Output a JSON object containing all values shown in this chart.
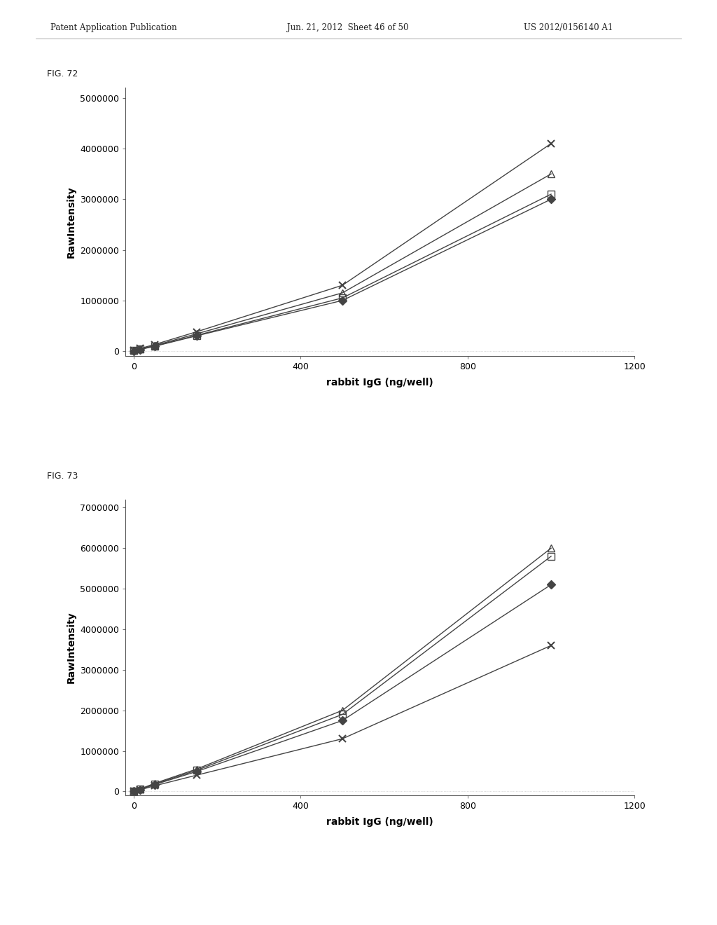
{
  "header_left": "Patent Application Publication",
  "header_mid": "Jun. 21, 2012  Sheet 46 of 50",
  "header_right": "US 2012/0156140 A1",
  "fig72": {
    "label": "FIG. 72",
    "xlabel": "rabbit IgG (ng/well)",
    "ylabel": "RawIntensity",
    "xlim": [
      -20,
      1200
    ],
    "ylim": [
      -100000,
      5200000
    ],
    "xticks": [
      0,
      400,
      800,
      1200
    ],
    "yticks": [
      0,
      1000000,
      2000000,
      3000000,
      4000000,
      5000000
    ],
    "series": [
      {
        "x": [
          0,
          15,
          50,
          150,
          500,
          1000
        ],
        "y": [
          10000,
          50000,
          130000,
          380000,
          1300000,
          4100000
        ],
        "marker": "x",
        "color": "#444444",
        "markersize": 7,
        "linewidth": 1.0,
        "fillstyle": "full"
      },
      {
        "x": [
          0,
          15,
          50,
          150,
          500,
          1000
        ],
        "y": [
          8000,
          40000,
          110000,
          340000,
          1150000,
          3500000
        ],
        "marker": "^",
        "color": "#444444",
        "markersize": 7,
        "linewidth": 1.0,
        "fillstyle": "none"
      },
      {
        "x": [
          0,
          15,
          50,
          150,
          500,
          1000
        ],
        "y": [
          7000,
          35000,
          100000,
          310000,
          1050000,
          3100000
        ],
        "marker": "s",
        "color": "#444444",
        "markersize": 7,
        "linewidth": 1.0,
        "fillstyle": "none"
      },
      {
        "x": [
          0,
          15,
          50,
          150,
          500,
          1000
        ],
        "y": [
          6000,
          32000,
          95000,
          300000,
          1000000,
          3000000
        ],
        "marker": "D",
        "color": "#444444",
        "markersize": 6,
        "linewidth": 1.0,
        "fillstyle": "full"
      }
    ]
  },
  "fig73": {
    "label": "FIG. 73",
    "xlabel": "rabbit IgG (ng/well)",
    "ylabel": "RawIntensity",
    "xlim": [
      -20,
      1200
    ],
    "ylim": [
      -100000,
      7200000
    ],
    "xticks": [
      0,
      400,
      800,
      1200
    ],
    "yticks": [
      0,
      1000000,
      2000000,
      3000000,
      4000000,
      5000000,
      6000000,
      7000000
    ],
    "series": [
      {
        "x": [
          0,
          15,
          50,
          150,
          500,
          1000
        ],
        "y": [
          10000,
          60000,
          200000,
          550000,
          2000000,
          6000000
        ],
        "marker": "^",
        "color": "#444444",
        "markersize": 7,
        "linewidth": 1.0,
        "fillstyle": "none"
      },
      {
        "x": [
          0,
          15,
          50,
          150,
          500,
          1000
        ],
        "y": [
          9000,
          55000,
          185000,
          520000,
          1900000,
          5800000
        ],
        "marker": "s",
        "color": "#444444",
        "markersize": 7,
        "linewidth": 1.0,
        "fillstyle": "none"
      },
      {
        "x": [
          0,
          15,
          50,
          150,
          500,
          1000
        ],
        "y": [
          8000,
          50000,
          170000,
          490000,
          1750000,
          5100000
        ],
        "marker": "D",
        "color": "#444444",
        "markersize": 6,
        "linewidth": 1.0,
        "fillstyle": "full"
      },
      {
        "x": [
          0,
          15,
          50,
          150,
          500,
          1000
        ],
        "y": [
          6000,
          40000,
          140000,
          400000,
          1300000,
          3600000
        ],
        "marker": "x",
        "color": "#444444",
        "markersize": 7,
        "linewidth": 1.0,
        "fillstyle": "full"
      }
    ]
  },
  "bg_color": "#ffffff",
  "header_fontsize": 8.5,
  "label_fontsize": 10,
  "tick_fontsize": 9,
  "fig_label_fontsize": 9
}
